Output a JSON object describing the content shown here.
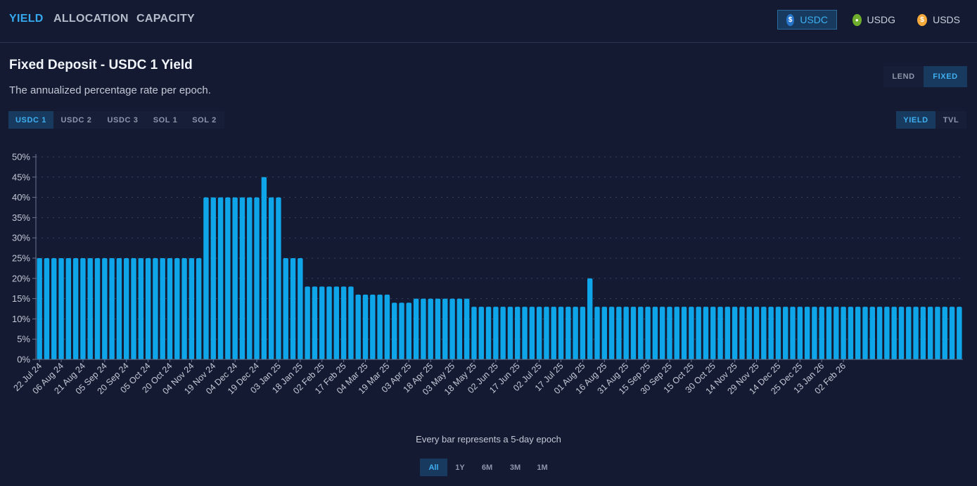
{
  "nav": {
    "tabs": [
      "YIELD",
      "ALLOCATION",
      "CAPACITY"
    ],
    "active": 0
  },
  "tokens": [
    {
      "label": "USDC",
      "icon": "usdc-coin-icon",
      "glyph": "$",
      "color": "#2775ca",
      "active": true
    },
    {
      "label": "USDG",
      "icon": "usdg-coin-icon",
      "glyph": "●",
      "color": "#6fae2c",
      "active": false
    },
    {
      "label": "USDS",
      "icon": "usds-coin-icon",
      "glyph": "$",
      "color": "#f4a93b",
      "active": false
    }
  ],
  "header": {
    "title": "Fixed Deposit - USDC 1 Yield",
    "subtitle": "The annualized percentage rate per epoch."
  },
  "mode_toggle": {
    "options": [
      "LEND",
      "FIXED"
    ],
    "active": 1
  },
  "pool_tabs": {
    "options": [
      "USDC 1",
      "USDC 2",
      "USDC 3",
      "SOL 1",
      "SOL 2"
    ],
    "active": 0
  },
  "metric_toggle": {
    "options": [
      "YIELD",
      "TVL"
    ],
    "active": 0
  },
  "footer_note": "Every bar represents a 5-day epoch",
  "range_tabs": {
    "options": [
      "All",
      "1Y",
      "6M",
      "3M",
      "1M"
    ],
    "active": 0
  },
  "colors": {
    "bar": "#0ea5e9",
    "grid": "#39435f",
    "accent": "#36a9ee",
    "background": "#131a32"
  },
  "chart_data": {
    "type": "bar",
    "ylabel": "",
    "xlabel": "",
    "ylim": [
      0,
      50
    ],
    "y_ticks": [
      "0%",
      "5%",
      "10%",
      "15%",
      "20%",
      "25%",
      "30%",
      "35%",
      "40%",
      "45%",
      "50%"
    ],
    "grid": true,
    "x_tick_labels": [
      "22 Jul 24",
      "06 Aug 24",
      "21 Aug 24",
      "05 Sep 24",
      "20 Sep 24",
      "05 Oct 24",
      "20 Oct 24",
      "04 Nov 24",
      "19 Nov 24",
      "04 Dec 24",
      "19 Dec 24",
      "03 Jan 25",
      "18 Jan 25",
      "02 Feb 25",
      "17 Feb 25",
      "04 Mar 25",
      "19 Mar 25",
      "03 Apr 25",
      "18 Apr 25",
      "03 May 25",
      "18 May 25",
      "02 Jun 25",
      "17 Jun 25",
      "02 Jul 25",
      "17 Jul 25",
      "01 Aug 25",
      "16 Aug 25",
      "31 Aug 25",
      "15 Sep 25",
      "30 Sep 25",
      "15 Oct 25",
      "30 Oct 25",
      "14 Nov 25",
      "29 Nov 25",
      "14 Dec 25",
      "25 Dec 25",
      "13 Jan 26",
      "02 Feb 26"
    ],
    "values": [
      25,
      25,
      25,
      25,
      25,
      25,
      25,
      25,
      25,
      25,
      25,
      25,
      25,
      25,
      25,
      25,
      25,
      25,
      25,
      25,
      25,
      25,
      25,
      40,
      40,
      40,
      40,
      40,
      40,
      40,
      40,
      45,
      40,
      40,
      25,
      25,
      25,
      18,
      18,
      18,
      18,
      18,
      18,
      18,
      16,
      16,
      16,
      16,
      16,
      14,
      14,
      14,
      15,
      15,
      15,
      15,
      15,
      15,
      15,
      15,
      13,
      13,
      13,
      13,
      13,
      13,
      13,
      13,
      13,
      13,
      13,
      13,
      13,
      13,
      13,
      13,
      20,
      13,
      13,
      13,
      13,
      13,
      13,
      13,
      13,
      13,
      13,
      13,
      13,
      13,
      13,
      13,
      13,
      13,
      13,
      13,
      13,
      13,
      13,
      13,
      13,
      13,
      13,
      13,
      13,
      13,
      13,
      13,
      13,
      13,
      13,
      13,
      13,
      13,
      13,
      13,
      13,
      13,
      13,
      13,
      13,
      13,
      13,
      13,
      13,
      13,
      13,
      13
    ]
  }
}
